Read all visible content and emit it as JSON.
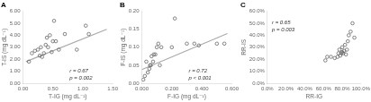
{
  "chart_data": [
    {
      "type": "scatter",
      "title": "A",
      "x_label": "T-IG (mg dL⁻¹)",
      "y_label": "T-IS (mg dL⁻¹)",
      "xlim": [
        0,
        1.5
      ],
      "ylim": [
        0.0,
        6.0
      ],
      "xticks": [
        {
          "value": 0.0,
          "label": "0.00"
        },
        {
          "value": 0.5,
          "label": "0.50"
        },
        {
          "value": 1.0,
          "label": "1.00"
        },
        {
          "value": 1.5,
          "label": "1.50"
        }
      ],
      "yticks": [
        {
          "value": 0.0,
          "label": "0.00"
        },
        {
          "value": 1.0,
          "label": "1.00"
        },
        {
          "value": 2.0,
          "label": "2.00"
        },
        {
          "value": 3.0,
          "label": "3.00"
        },
        {
          "value": 4.0,
          "label": "4.00"
        },
        {
          "value": 5.0,
          "label": "5.00"
        },
        {
          "value": 6.0,
          "label": "6.00"
        }
      ],
      "grid": false,
      "series": [
        {
          "type": "scatter",
          "marker": "circle",
          "color": "#666666",
          "x": [
            0.1,
            0.15,
            0.2,
            0.25,
            0.28,
            0.3,
            0.32,
            0.35,
            0.38,
            0.4,
            0.42,
            0.45,
            0.48,
            0.5,
            0.52,
            0.55,
            0.6,
            0.7,
            0.9,
            1.05,
            1.1
          ],
          "values": [
            1.8,
            2.5,
            2.7,
            2.8,
            2.3,
            3.0,
            2.2,
            2.5,
            3.2,
            3.8,
            3.0,
            4.0,
            2.6,
            3.5,
            5.2,
            3.5,
            2.8,
            4.1,
            2.8,
            4.8,
            4.1
          ]
        },
        {
          "type": "line",
          "color": "#aaaaaa",
          "line_style": "solid",
          "x": [
            0.05,
            1.4
          ],
          "values": [
            1.8,
            4.5
          ]
        }
      ],
      "annotations": [
        "r = 0.67\np = 0.002"
      ]
    },
    {
      "type": "scatter",
      "title": "B",
      "x_label": "F-IG (mg dL⁻¹)",
      "y_label": "F-IS (mg dL⁻¹)",
      "xlim": [
        0,
        0.6
      ],
      "ylim": [
        0.0,
        0.2
      ],
      "xticks": [
        {
          "value": 0.0,
          "label": "0.000"
        },
        {
          "value": 0.2,
          "label": "0.200"
        },
        {
          "value": 0.4,
          "label": "0.400"
        },
        {
          "value": 0.6,
          "label": "0.600"
        }
      ],
      "yticks": [
        {
          "value": 0.0,
          "label": "0.00"
        },
        {
          "value": 0.05,
          "label": "0.05"
        },
        {
          "value": 0.1,
          "label": "0.10"
        },
        {
          "value": 0.15,
          "label": "0.15"
        },
        {
          "value": 0.2,
          "label": "0.20"
        }
      ],
      "grid": false,
      "series": [
        {
          "type": "scatter",
          "marker": "circle",
          "color": "#666666",
          "x": [
            0.01,
            0.02,
            0.03,
            0.04,
            0.05,
            0.055,
            0.06,
            0.065,
            0.075,
            0.08,
            0.09,
            0.1,
            0.11,
            0.12,
            0.13,
            0.2,
            0.22,
            0.3,
            0.35,
            0.38,
            0.5,
            0.55
          ],
          "values": [
            0.01,
            0.02,
            0.06,
            0.03,
            0.04,
            0.05,
            0.05,
            0.075,
            0.06,
            0.08,
            0.08,
            0.1,
            0.11,
            0.05,
            0.1,
            0.1,
            0.18,
            0.11,
            0.11,
            0.105,
            0.11,
            0.11
          ]
        },
        {
          "type": "line",
          "color": "#aaaaaa",
          "line_style": "solid",
          "x": [
            0.0,
            0.57
          ],
          "values": [
            0.038,
            0.138
          ]
        }
      ],
      "annotations": [
        "r = 0.72\np < 0.001"
      ]
    },
    {
      "type": "scatter",
      "title": "C",
      "x_label": "RR-IG",
      "y_label": "RR-IS",
      "xlim": [
        0.0,
        1.0
      ],
      "ylim": [
        0.0,
        0.6
      ],
      "xticks": [
        {
          "value": 0.0,
          "label": "0.0%"
        },
        {
          "value": 0.2,
          "label": "20.0%"
        },
        {
          "value": 0.4,
          "label": "40.0%"
        },
        {
          "value": 0.6,
          "label": "60.0%"
        },
        {
          "value": 0.8,
          "label": "80.0%"
        },
        {
          "value": 1.0,
          "label": "100.0%"
        }
      ],
      "yticks": [
        {
          "value": 0.0,
          "label": "0.0%"
        },
        {
          "value": 0.1,
          "label": "10.0%"
        },
        {
          "value": 0.2,
          "label": "20.0%"
        },
        {
          "value": 0.3,
          "label": "30.0%"
        },
        {
          "value": 0.4,
          "label": "40.0%"
        },
        {
          "value": 0.5,
          "label": "50.0%"
        },
        {
          "value": 0.6,
          "label": "60.0%"
        }
      ],
      "grid": false,
      "series": [
        {
          "type": "scatter",
          "marker": "circle",
          "color": "#666666",
          "x": [
            0.62,
            0.64,
            0.68,
            0.72,
            0.75,
            0.76,
            0.77,
            0.78,
            0.79,
            0.8,
            0.8,
            0.81,
            0.82,
            0.83,
            0.84,
            0.85,
            0.86,
            0.87,
            0.89,
            0.91,
            0.93
          ],
          "values": [
            0.19,
            0.22,
            0.22,
            0.21,
            0.22,
            0.25,
            0.28,
            0.23,
            0.25,
            0.26,
            0.3,
            0.25,
            0.27,
            0.32,
            0.24,
            0.28,
            0.35,
            0.4,
            0.43,
            0.5,
            0.38
          ]
        }
      ],
      "annotations": [
        "r = 0.65\np = 0.003"
      ]
    }
  ]
}
